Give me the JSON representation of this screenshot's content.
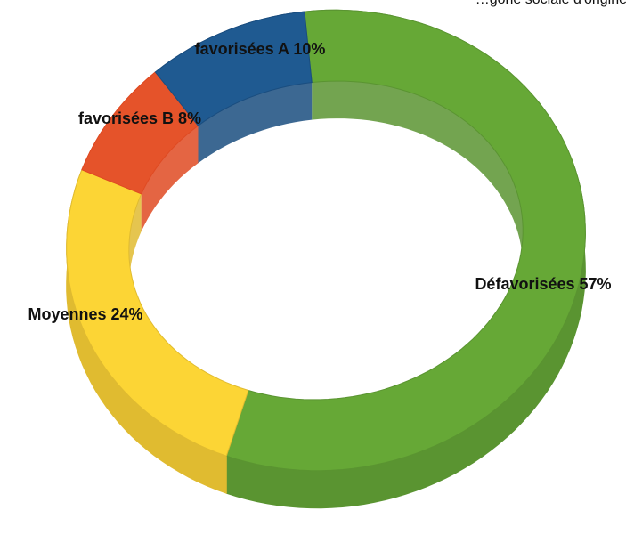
{
  "chart_data": {
    "type": "pie",
    "style": "3d-donut",
    "series": [
      {
        "category": "Défavorisées",
        "value": 57,
        "label": "Défavorisées 57%",
        "color": "#5a9431",
        "top_color": "#66a836"
      },
      {
        "category": "Moyennes",
        "value": 24,
        "label": "Moyennes 24%",
        "color": "#e0bb30",
        "top_color": "#fcd535"
      },
      {
        "category": "favorisées B",
        "value": 8,
        "label": "favorisées B 8%",
        "color": "#df4a22",
        "top_color": "#e5532a"
      },
      {
        "category": "favorisées A",
        "value": 10,
        "label": "favorisées A 10%",
        "color": "#1a4d7f",
        "top_color": "#1f5a91"
      }
    ],
    "clipped_title": "…gorie sociale d'origine"
  }
}
